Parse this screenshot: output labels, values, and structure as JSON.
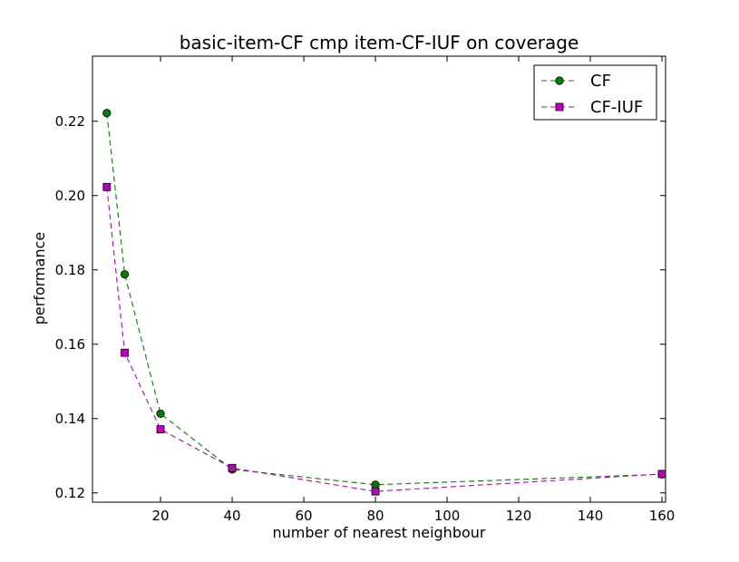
{
  "chart_data": {
    "type": "line",
    "title": "basic-item-CF cmp item-CF-IUF on coverage",
    "xlabel": "number of nearest neighbour",
    "ylabel": "performance",
    "xlim": [
      1,
      161
    ],
    "ylim": [
      0.1175,
      0.2375
    ],
    "xticks": [
      20,
      40,
      60,
      80,
      100,
      120,
      140,
      160
    ],
    "xtick_labels": [
      "20",
      "40",
      "60",
      "80",
      "100",
      "120",
      "140",
      "160"
    ],
    "yticks": [
      0.12,
      0.14,
      0.16,
      0.18,
      0.2,
      0.22
    ],
    "ytick_labels": [
      "0.12",
      "0.14",
      "0.16",
      "0.18",
      "0.20",
      "0.22"
    ],
    "grid": false,
    "legend_position": "top-right",
    "x": [
      5,
      10,
      20,
      40,
      80,
      160
    ],
    "series": [
      {
        "name": "CF",
        "values": [
          0.2222,
          0.1788,
          0.1413,
          0.1263,
          0.1222,
          0.125
        ],
        "color": "#008000",
        "marker": "circle",
        "linestyle": "dashed"
      },
      {
        "name": "CF-IUF",
        "values": [
          0.2023,
          0.1577,
          0.1371,
          0.1267,
          0.1204,
          0.1251
        ],
        "color": "#bf00bf",
        "marker": "square",
        "linestyle": "dashed"
      }
    ]
  }
}
